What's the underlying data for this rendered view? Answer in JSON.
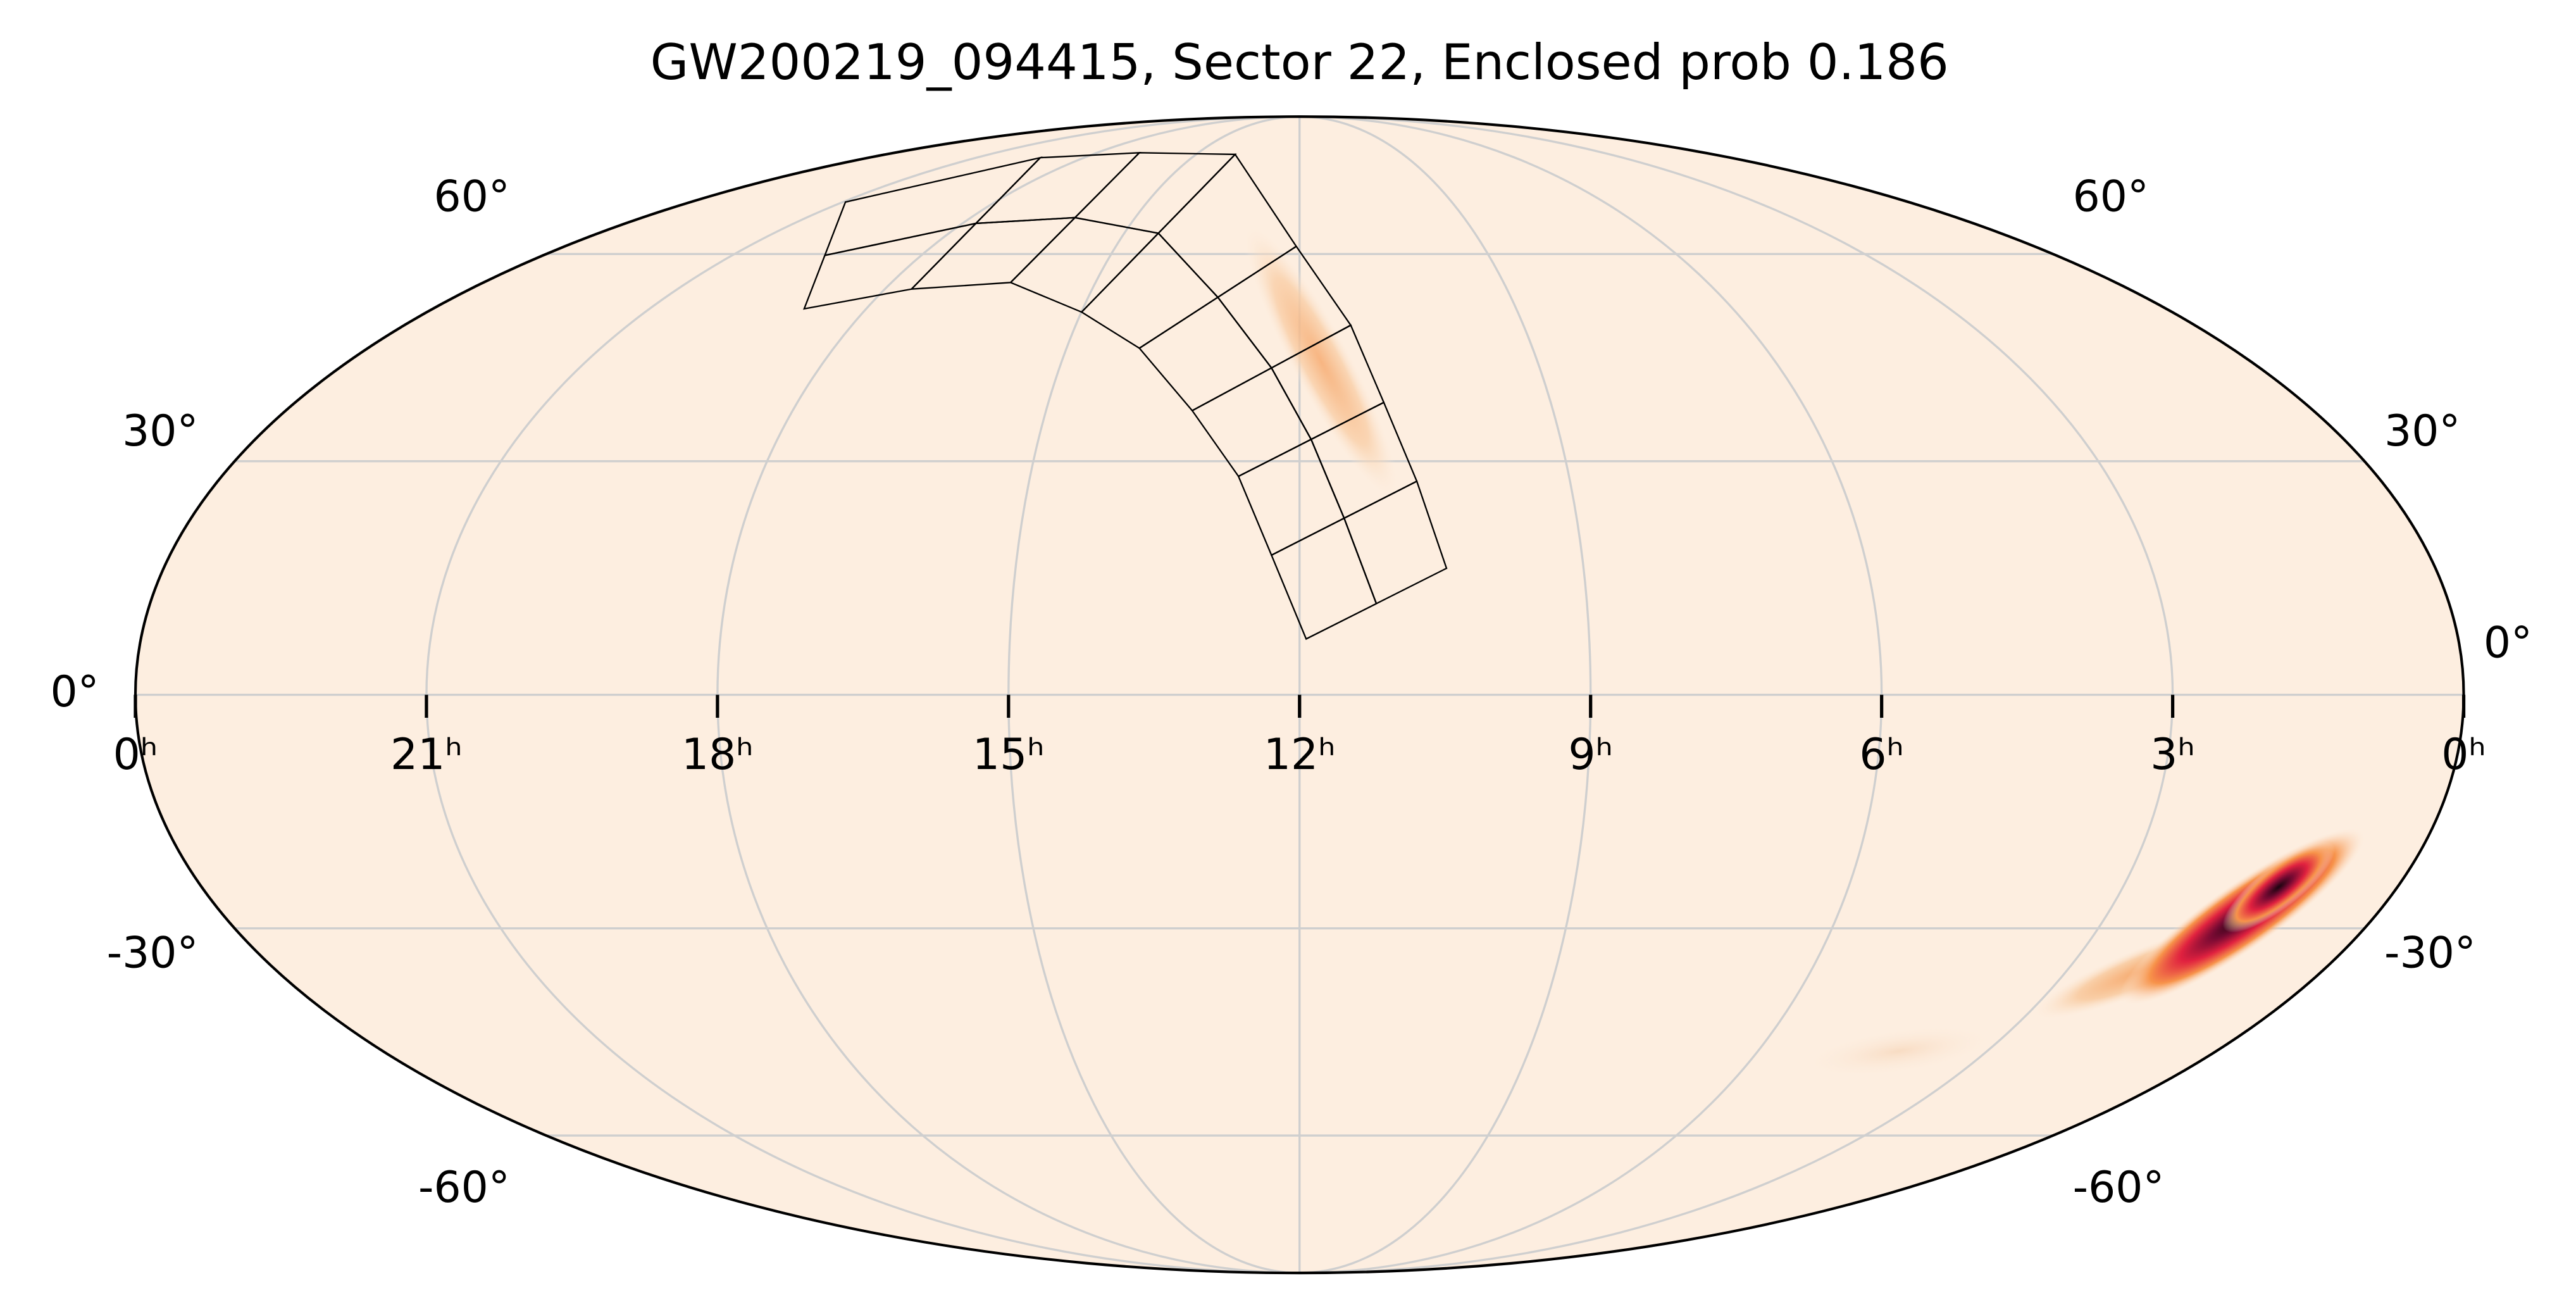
{
  "chart_data": {
    "type": "mollweide",
    "title": "GW200219_094415, Sector 22, Enclosed prob 0.186",
    "xlim": [
      24,
      0
    ],
    "xticks": [
      {
        "value": 24,
        "label": "0ʰ"
      },
      {
        "value": 21,
        "label": "21ʰ"
      },
      {
        "value": 18,
        "label": "18ʰ"
      },
      {
        "value": 15,
        "label": "15ʰ"
      },
      {
        "value": 12,
        "label": "12ʰ"
      },
      {
        "value": 9,
        "label": "9ʰ"
      },
      {
        "value": 6,
        "label": "6ʰ"
      },
      {
        "value": 3,
        "label": "3ʰ"
      },
      {
        "value": 0,
        "label": "0ʰ"
      }
    ],
    "ylim": [
      -90,
      90
    ],
    "yticks": [
      {
        "value": 60,
        "label": "60°"
      },
      {
        "value": 30,
        "label": "30°"
      },
      {
        "value": 0,
        "label": "0°"
      },
      {
        "value": -30,
        "label": "-30°"
      },
      {
        "value": -60,
        "label": "-60°"
      }
    ],
    "grid": true
  }
}
